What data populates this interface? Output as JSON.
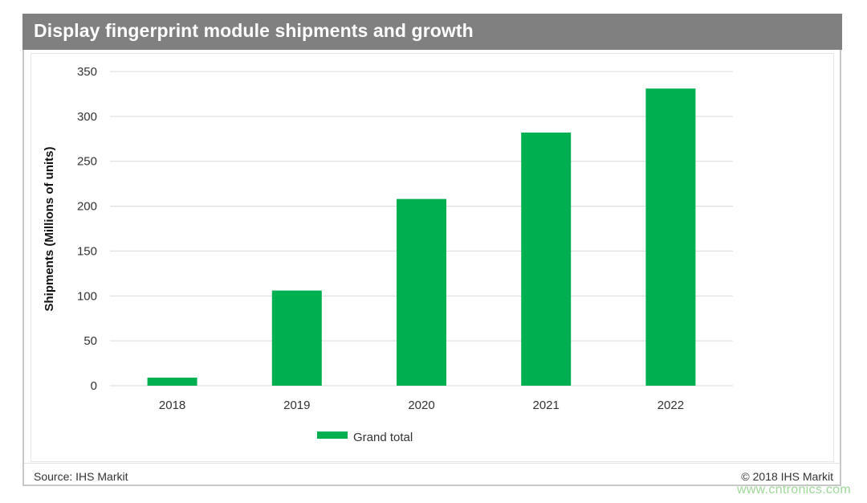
{
  "chart_data": {
    "type": "bar",
    "title": "Display fingerprint module shipments and growth",
    "xlabel": "",
    "ylabel": "Shipments (Millions of units)",
    "categories": [
      "2018",
      "2019",
      "2020",
      "2021",
      "2022"
    ],
    "series": [
      {
        "name": "Grand total",
        "values": [
          9,
          106,
          208,
          282,
          331
        ],
        "color": "#00b050"
      }
    ],
    "ylim": [
      0,
      350
    ],
    "yticks": [
      0,
      50,
      100,
      150,
      200,
      250,
      300,
      350
    ],
    "grid": true,
    "legend_position": "bottom"
  },
  "footer": {
    "source": "Source: IHS Markit",
    "copyright": "© 2018 IHS Markit"
  },
  "watermark": "www.cntronics.com",
  "colors": {
    "header_bg": "#808080",
    "bar": "#00b050",
    "gridline": "#d9d9d9"
  }
}
